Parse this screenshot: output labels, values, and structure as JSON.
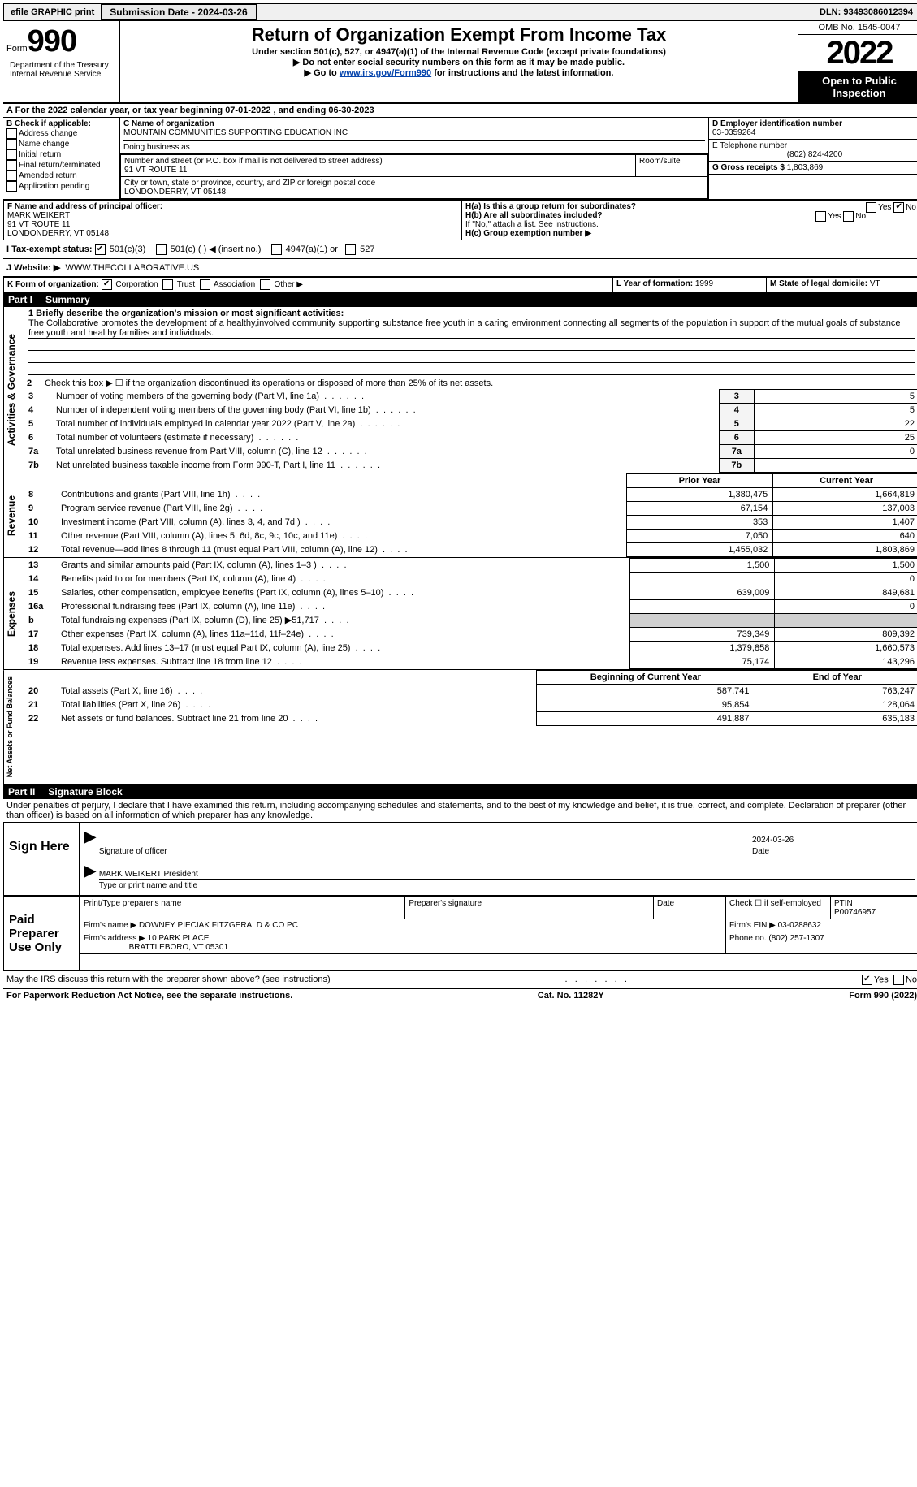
{
  "topbar": {
    "efile_label": "efile GRAPHIC print",
    "submission_label": "Submission Date - 2024-03-26",
    "dln_label": "DLN: 93493086012394"
  },
  "header": {
    "form_word": "Form",
    "form_num": "990",
    "title": "Return of Organization Exempt From Income Tax",
    "subtitle": "Under section 501(c), 527, or 4947(a)(1) of the Internal Revenue Code (except private foundations)",
    "nossn": "▶ Do not enter social security numbers on this form as it may be made public.",
    "goto_pre": "▶ Go to ",
    "goto_link": "www.irs.gov/Form990",
    "goto_post": " for instructions and the latest information.",
    "dept": "Department of the Treasury\nInternal Revenue Service",
    "omb": "OMB No. 1545-0047",
    "year": "2022",
    "inspect": "Open to Public Inspection"
  },
  "A": {
    "text": "A For the 2022 calendar year, or tax year beginning 07-01-2022    , and ending 06-30-2023"
  },
  "B": {
    "label": "B Check if applicable:",
    "items": [
      "Address change",
      "Name change",
      "Initial return",
      "Final return/terminated",
      "Amended return",
      "Application pending"
    ]
  },
  "C": {
    "name_label": "C Name of organization",
    "name": "MOUNTAIN COMMUNITIES SUPPORTING EDUCATION INC",
    "dba_label": "Doing business as",
    "street_label": "Number and street (or P.O. box if mail is not delivered to street address)",
    "street": "91 VT ROUTE 11",
    "room_label": "Room/suite",
    "city_label": "City or town, state or province, country, and ZIP or foreign postal code",
    "city": "LONDONDERRY, VT  05148"
  },
  "D": {
    "label": "D Employer identification number",
    "value": "03-0359264"
  },
  "E": {
    "label": "E Telephone number",
    "value": "(802) 824-4200"
  },
  "G": {
    "label": "G Gross receipts $",
    "value": "1,803,869"
  },
  "F": {
    "label": "F  Name and address of principal officer:",
    "name": "MARK WEIKERT",
    "street": "91 VT ROUTE 11",
    "city": "LONDONDERRY, VT  05148"
  },
  "H": {
    "a_label": "H(a)  Is this a group return for subordinates?",
    "b_label": "H(b)  Are all subordinates included?",
    "b_note": "If \"No,\" attach a list. See instructions.",
    "c_label": "H(c)  Group exemption number ▶",
    "yes": "Yes",
    "no": "No"
  },
  "I": {
    "label": "I   Tax-exempt status:",
    "opts": [
      "501(c)(3)",
      "501(c) (  ) ◀ (insert no.)",
      "4947(a)(1) or",
      "527"
    ]
  },
  "J": {
    "label": "J   Website: ▶",
    "value": "WWW.THECOLLABORATIVE.US"
  },
  "K": {
    "label": "K Form of organization:",
    "opts": [
      "Corporation",
      "Trust",
      "Association",
      "Other ▶"
    ]
  },
  "L": {
    "label": "L Year of formation: ",
    "value": "1999"
  },
  "M": {
    "label": "M State of legal domicile: ",
    "value": "VT"
  },
  "partI": {
    "num": "Part I",
    "title": "Summary"
  },
  "summary": {
    "mission_label": "1   Briefly describe the organization's mission or most significant activities:",
    "mission_text": "The Collaborative promotes the development of a healthy,involved community supporting substance free youth in a caring environment connecting all segments of the population in support of the mutual goals of substance free youth and healthy families and individuals.",
    "line2": "Check this box ▶ ☐ if the organization discontinued its operations or disposed of more than 25% of its net assets.",
    "lines_ag": [
      {
        "n": "3",
        "d": "Number of voting members of the governing body (Part VI, line 1a)",
        "v": "5"
      },
      {
        "n": "4",
        "d": "Number of independent voting members of the governing body (Part VI, line 1b)",
        "v": "5"
      },
      {
        "n": "5",
        "d": "Total number of individuals employed in calendar year 2022 (Part V, line 2a)",
        "v": "22"
      },
      {
        "n": "6",
        "d": "Total number of volunteers (estimate if necessary)",
        "v": "25"
      },
      {
        "n": "7a",
        "d": "Total unrelated business revenue from Part VIII, column (C), line 12",
        "v": "0"
      },
      {
        "n": "7b",
        "d": "Net unrelated business taxable income from Form 990-T, Part I, line 11",
        "v": ""
      }
    ],
    "col_prior": "Prior Year",
    "col_current": "Current Year",
    "revenue": [
      {
        "n": "8",
        "d": "Contributions and grants (Part VIII, line 1h)",
        "p": "1,380,475",
        "c": "1,664,819"
      },
      {
        "n": "9",
        "d": "Program service revenue (Part VIII, line 2g)",
        "p": "67,154",
        "c": "137,003"
      },
      {
        "n": "10",
        "d": "Investment income (Part VIII, column (A), lines 3, 4, and 7d )",
        "p": "353",
        "c": "1,407"
      },
      {
        "n": "11",
        "d": "Other revenue (Part VIII, column (A), lines 5, 6d, 8c, 9c, 10c, and 11e)",
        "p": "7,050",
        "c": "640"
      },
      {
        "n": "12",
        "d": "Total revenue—add lines 8 through 11 (must equal Part VIII, column (A), line 12)",
        "p": "1,455,032",
        "c": "1,803,869"
      }
    ],
    "expenses": [
      {
        "n": "13",
        "d": "Grants and similar amounts paid (Part IX, column (A), lines 1–3 )",
        "p": "1,500",
        "c": "1,500"
      },
      {
        "n": "14",
        "d": "Benefits paid to or for members (Part IX, column (A), line 4)",
        "p": "",
        "c": "0"
      },
      {
        "n": "15",
        "d": "Salaries, other compensation, employee benefits (Part IX, column (A), lines 5–10)",
        "p": "639,009",
        "c": "849,681"
      },
      {
        "n": "16a",
        "d": "Professional fundraising fees (Part IX, column (A), line 11e)",
        "p": "",
        "c": "0"
      },
      {
        "n": "b",
        "d": "Total fundraising expenses (Part IX, column (D), line 25) ▶51,717",
        "p": "GREY",
        "c": "GREY"
      },
      {
        "n": "17",
        "d": "Other expenses (Part IX, column (A), lines 11a–11d, 11f–24e)",
        "p": "739,349",
        "c": "809,392"
      },
      {
        "n": "18",
        "d": "Total expenses. Add lines 13–17 (must equal Part IX, column (A), line 25)",
        "p": "1,379,858",
        "c": "1,660,573"
      },
      {
        "n": "19",
        "d": "Revenue less expenses. Subtract line 18 from line 12",
        "p": "75,174",
        "c": "143,296"
      }
    ],
    "col_begin": "Beginning of Current Year",
    "col_end": "End of Year",
    "net": [
      {
        "n": "20",
        "d": "Total assets (Part X, line 16)",
        "p": "587,741",
        "c": "763,247"
      },
      {
        "n": "21",
        "d": "Total liabilities (Part X, line 26)",
        "p": "95,854",
        "c": "128,064"
      },
      {
        "n": "22",
        "d": "Net assets or fund balances. Subtract line 21 from line 20",
        "p": "491,887",
        "c": "635,183"
      }
    ],
    "vlabels": {
      "ag": "Activities & Governance",
      "rev": "Revenue",
      "exp": "Expenses",
      "net": "Net Assets or Fund Balances"
    }
  },
  "partII": {
    "num": "Part II",
    "title": "Signature Block"
  },
  "sig": {
    "perjury": "Under penalties of perjury, I declare that I have examined this return, including accompanying schedules and statements, and to the best of my knowledge and belief, it is true, correct, and complete. Declaration of preparer (other than officer) is based on all information of which preparer has any knowledge.",
    "sign_here": "Sign Here",
    "sig_officer": "Signature of officer",
    "date": "Date",
    "date_val": "2024-03-26",
    "name_title": "MARK WEIKERT President",
    "type_name": "Type or print name and title",
    "paid": "Paid Preparer Use Only",
    "ptin_label": "PTIN",
    "ptin": "P00746957",
    "check_self": "Check ☐ if self-employed",
    "print_name": "Print/Type preparer's name",
    "prep_sig": "Preparer's signature",
    "firm_name_label": "Firm's name    ▶",
    "firm_name": "DOWNEY PIECIAK FITZGERALD & CO PC",
    "firm_ein_label": "Firm's EIN ▶",
    "firm_ein": "03-0288632",
    "firm_addr_label": "Firm's address ▶",
    "firm_addr": "10 PARK PLACE",
    "firm_city": "BRATTLEBORO, VT  05301",
    "phone_label": "Phone no.",
    "phone": "(802) 257-1307",
    "discuss": "May the IRS discuss this return with the preparer shown above? (see instructions)"
  },
  "footer": {
    "pra": "For Paperwork Reduction Act Notice, see the separate instructions.",
    "cat": "Cat. No. 11282Y",
    "form": "Form 990 (2022)"
  }
}
